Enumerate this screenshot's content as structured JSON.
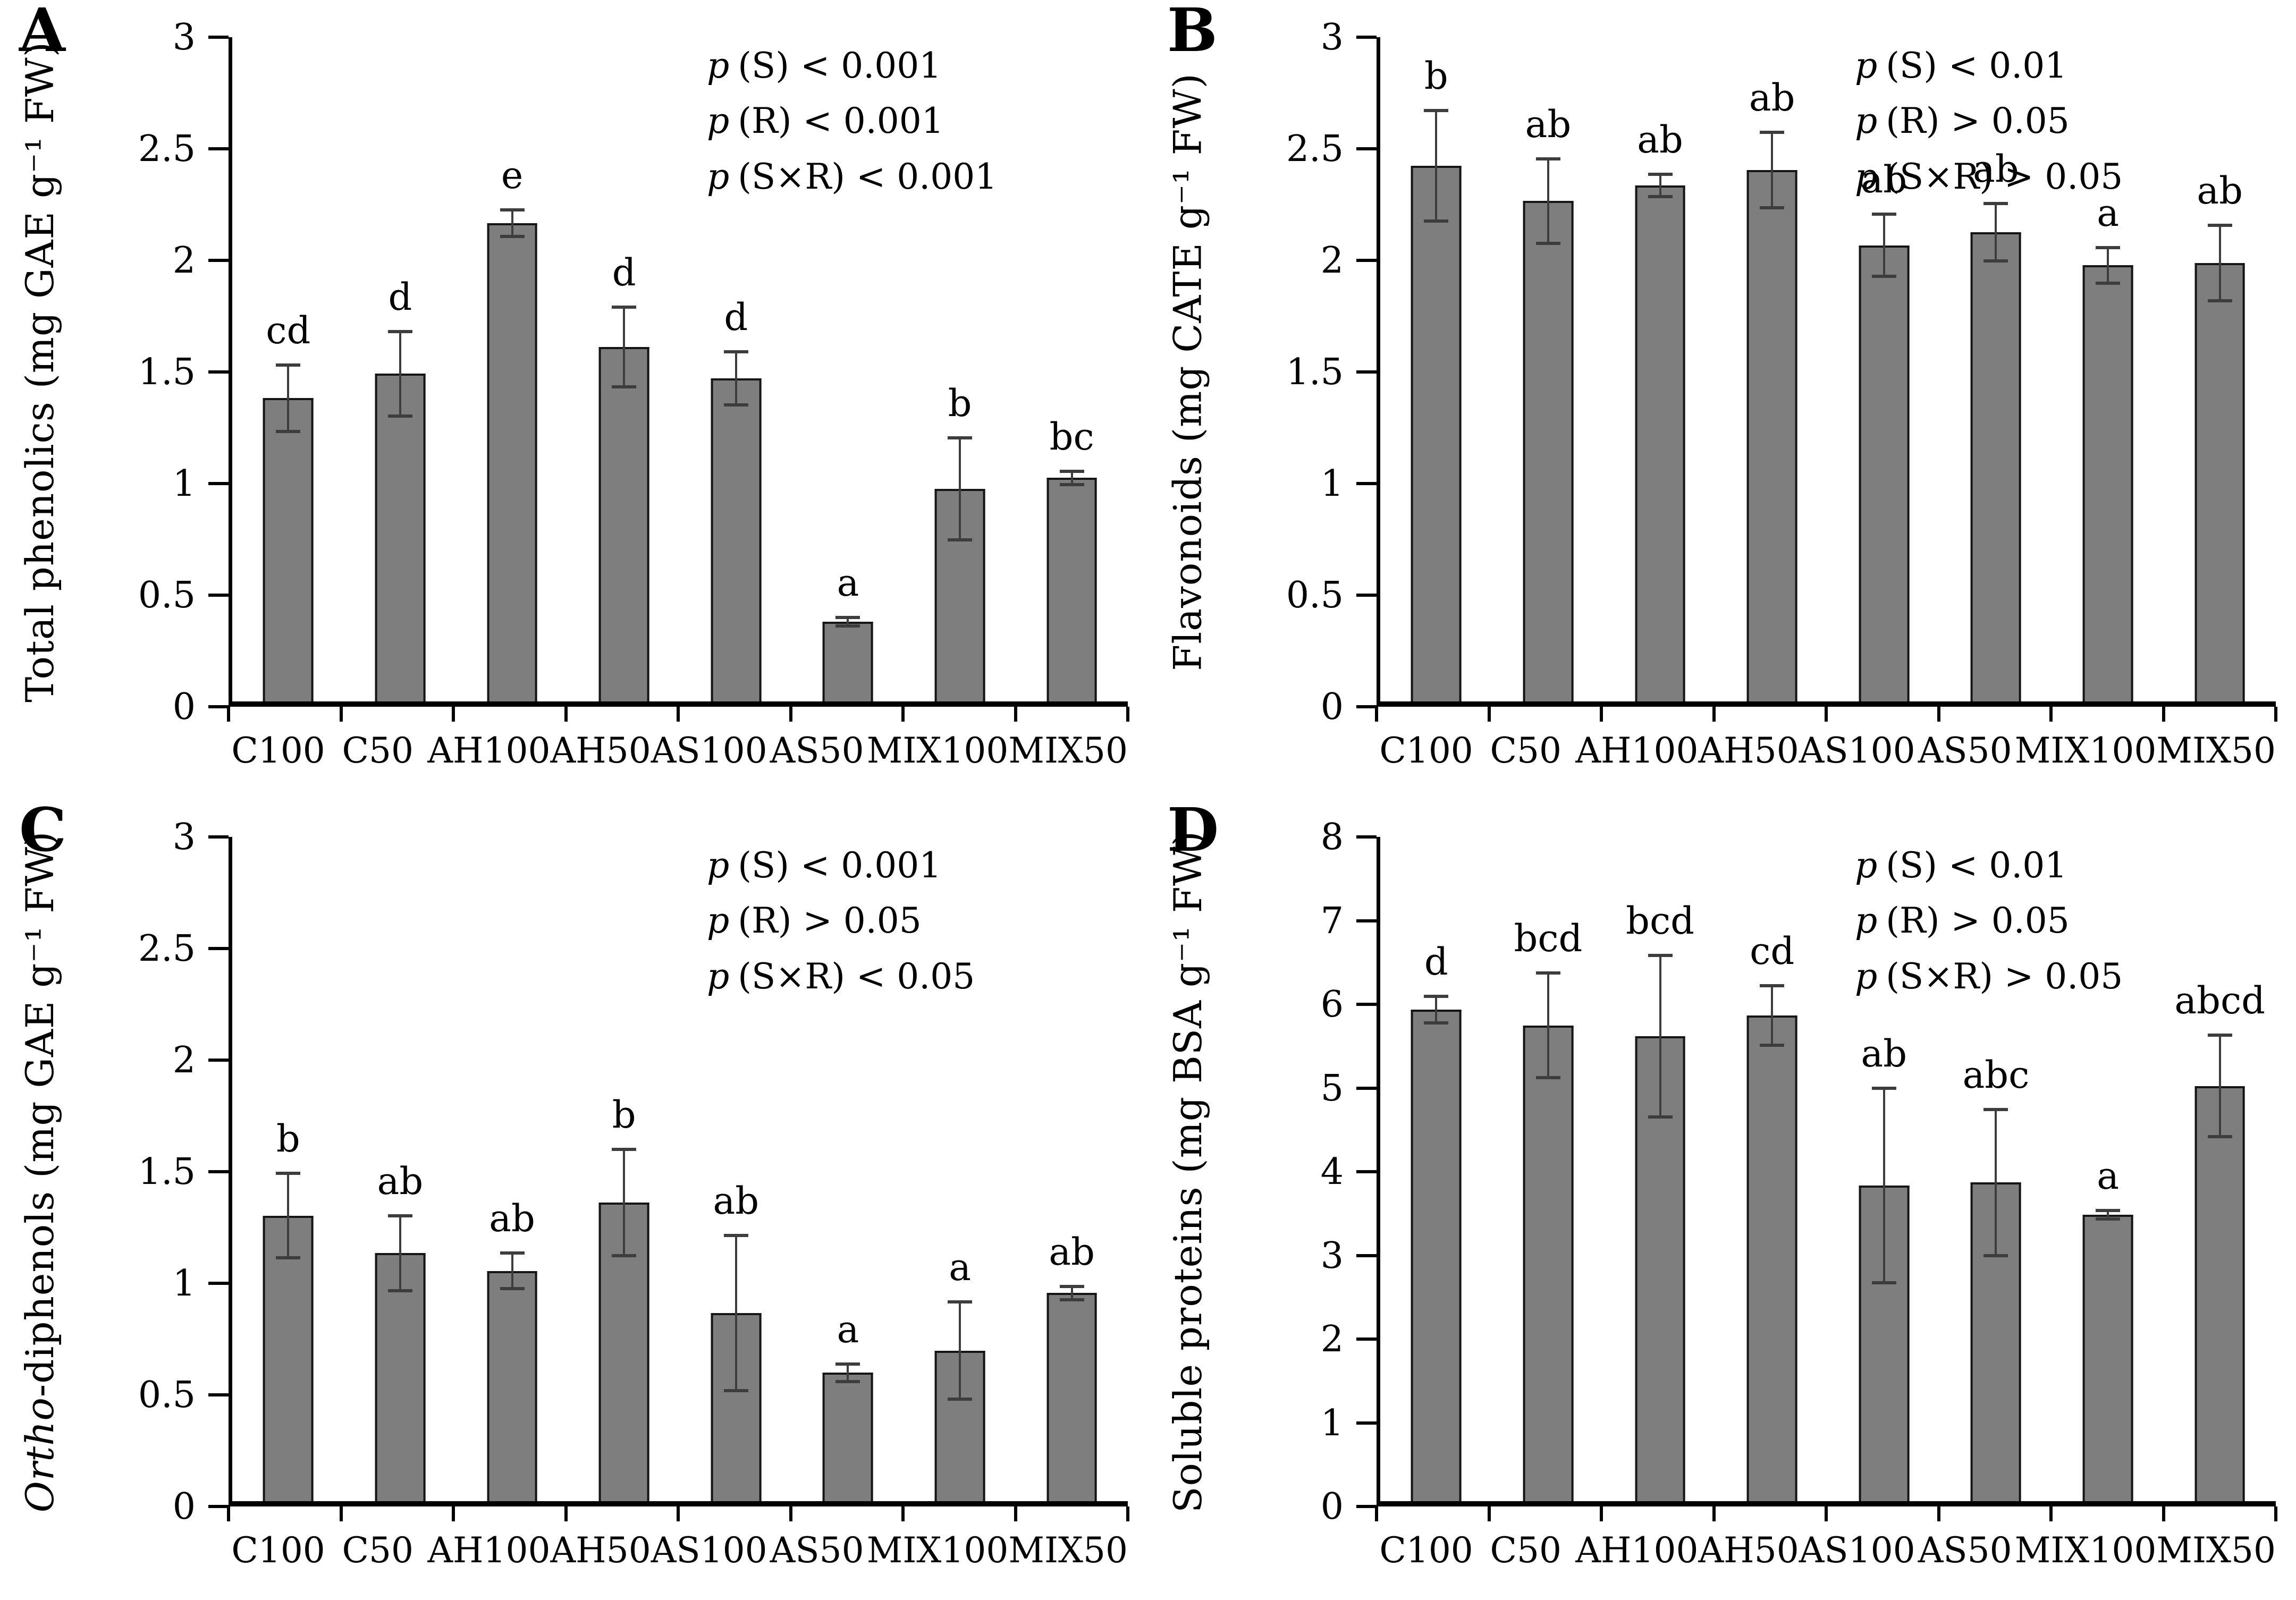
{
  "figure": {
    "p_symbol": "p",
    "bar_color": "#7e7e7e",
    "error_bar_color": "#3d3d3d",
    "axis_color": "#000000",
    "background": "#ffffff",
    "panel_labels": [
      "A",
      "B",
      "C",
      "D"
    ]
  },
  "chart_data": [
    {
      "panel_label": "A",
      "type": "bar",
      "ylabel_italic": "",
      "ylabel": "Total phenolics (mg GAE g⁻¹ FW)",
      "ylim": [
        0,
        3
      ],
      "yticks": [
        "0",
        "0.5",
        "1",
        "1.5",
        "2",
        "2.5",
        "3"
      ],
      "grid": false,
      "legend": "none",
      "categories": [
        "C100",
        "C50",
        "AH100",
        "AH50",
        "AS100",
        "AS50",
        "MIX100",
        "MIX50"
      ],
      "values": [
        1.37,
        1.48,
        2.16,
        1.6,
        1.46,
        0.36,
        0.96,
        1.01
      ],
      "errors": [
        0.15,
        0.19,
        0.06,
        0.18,
        0.12,
        0.02,
        0.23,
        0.03
      ],
      "letters": [
        "cd",
        "d",
        "e",
        "d",
        "d",
        "a",
        "b",
        "bc"
      ],
      "pvalues": [
        {
          "rest": "(S) < 0.001"
        },
        {
          "rest": "(R) < 0.001"
        },
        {
          "rest": "(S×R) < 0.001"
        }
      ]
    },
    {
      "panel_label": "B",
      "type": "bar",
      "ylabel_italic": "",
      "ylabel": "Flavonoids (mg CATE g⁻¹ FW)",
      "ylim": [
        0,
        3
      ],
      "yticks": [
        "0",
        "0.5",
        "1",
        "1.5",
        "2",
        "2.5",
        "3"
      ],
      "grid": false,
      "legend": "none",
      "categories": [
        "C100",
        "C50",
        "AH100",
        "AH50",
        "AS100",
        "AS50",
        "MIX100",
        "MIX50"
      ],
      "values": [
        2.42,
        2.26,
        2.33,
        2.4,
        2.06,
        2.12,
        1.97,
        1.98
      ],
      "errors": [
        0.25,
        0.19,
        0.05,
        0.17,
        0.14,
        0.13,
        0.08,
        0.17
      ],
      "letters": [
        "b",
        "ab",
        "ab",
        "ab",
        "ab",
        "ab",
        "a",
        "ab"
      ],
      "pvalues": [
        {
          "rest": "(S) < 0.01"
        },
        {
          "rest": "(R) > 0.05"
        },
        {
          "rest": "(S×R) > 0.05"
        }
      ]
    },
    {
      "panel_label": "C",
      "type": "bar",
      "ylabel_italic": "Ortho",
      "ylabel": "-diphenols (mg GAE g⁻¹ FW)",
      "ylim": [
        0,
        3
      ],
      "yticks": [
        "0",
        "0.5",
        "1",
        "1.5",
        "2",
        "2.5",
        "3"
      ],
      "grid": false,
      "legend": "none",
      "categories": [
        "C100",
        "C50",
        "AH100",
        "AH50",
        "AS100",
        "AS50",
        "MIX100",
        "MIX50"
      ],
      "values": [
        1.29,
        1.12,
        1.04,
        1.35,
        0.85,
        0.58,
        0.68,
        0.94
      ],
      "errors": [
        0.19,
        0.17,
        0.08,
        0.24,
        0.35,
        0.04,
        0.22,
        0.03
      ],
      "letters": [
        "b",
        "ab",
        "ab",
        "b",
        "ab",
        "a",
        "a",
        "ab"
      ],
      "pvalues": [
        {
          "rest": "(S) < 0.001"
        },
        {
          "rest": "(R) > 0.05"
        },
        {
          "rest": "(S×R) < 0.05"
        }
      ]
    },
    {
      "panel_label": "D",
      "type": "bar",
      "ylabel_italic": "",
      "ylabel": "Soluble proteins (mg BSA g⁻¹ FW)",
      "ylim": [
        0,
        8
      ],
      "yticks": [
        "0",
        "1",
        "2",
        "3",
        "4",
        "5",
        "6",
        "7",
        "8"
      ],
      "grid": false,
      "legend": "none",
      "categories": [
        "C100",
        "C50",
        "AH100",
        "AH50",
        "AS100",
        "AS50",
        "MIX100",
        "MIX50"
      ],
      "values": [
        5.92,
        5.73,
        5.6,
        5.85,
        3.8,
        3.84,
        3.45,
        5.0
      ],
      "errors": [
        0.16,
        0.63,
        0.97,
        0.36,
        1.17,
        0.88,
        0.05,
        0.61
      ],
      "letters": [
        "d",
        "bcd",
        "bcd",
        "cd",
        "ab",
        "abc",
        "a",
        "abcd"
      ],
      "pvalues": [
        {
          "rest": "(S) < 0.01"
        },
        {
          "rest": "(R) > 0.05"
        },
        {
          "rest": "(S×R) > 0.05"
        }
      ]
    }
  ]
}
